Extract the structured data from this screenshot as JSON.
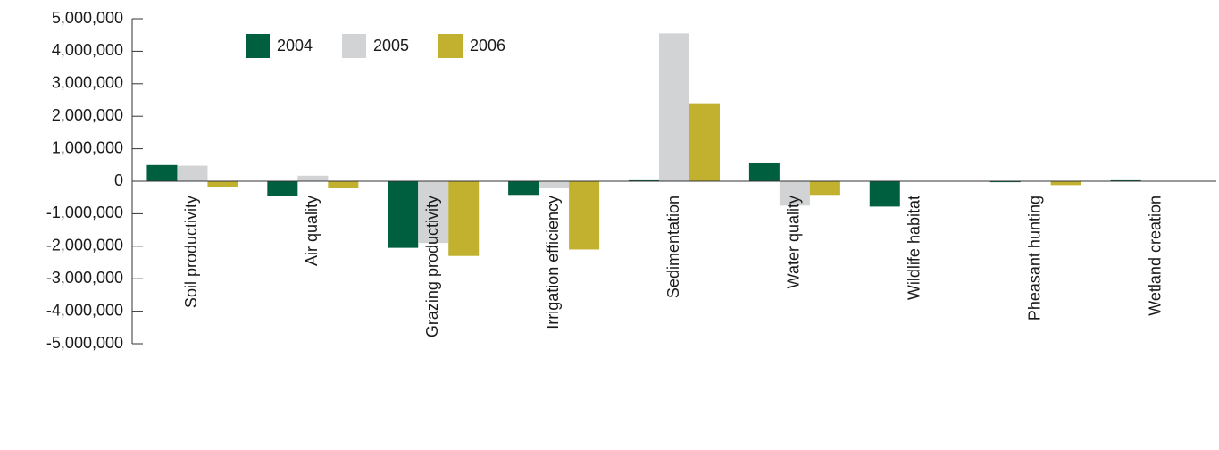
{
  "chart_data": {
    "type": "bar",
    "categories": [
      "Soil productivity",
      "Air quality",
      "Grazing productivity",
      "Irrigation efficiency",
      "Sedimentation",
      "Water quality",
      "Wildlife habitat",
      "Pheasant hunting",
      "Wetland creation"
    ],
    "series": [
      {
        "name": "2004",
        "color": "#005f3f",
        "values": [
          500000,
          -450000,
          -2050000,
          -420000,
          30000,
          550000,
          -780000,
          -30000,
          30000
        ]
      },
      {
        "name": "2005",
        "color": "#d1d3d4",
        "values": [
          480000,
          170000,
          -1900000,
          -220000,
          4550000,
          -750000,
          0,
          0,
          0
        ]
      },
      {
        "name": "2006",
        "color": "#c1b12f",
        "values": [
          -190000,
          -220000,
          -2300000,
          -2100000,
          2400000,
          -420000,
          0,
          -120000,
          0
        ]
      }
    ],
    "ylim": [
      -5000000,
      5000000
    ],
    "yticks": [
      {
        "value": -5000000,
        "label": "-5,000,000"
      },
      {
        "value": -4000000,
        "label": "-4,000,000"
      },
      {
        "value": -3000000,
        "label": "-3,000,000"
      },
      {
        "value": -2000000,
        "label": "-2,000,000"
      },
      {
        "value": -1000000,
        "label": "-1,000,000"
      },
      0,
      {
        "value": 1000000,
        "label": "1,000,000"
      },
      {
        "value": 2000000,
        "label": "2,000,000"
      },
      {
        "value": 3000000,
        "label": "3,000,000"
      },
      {
        "value": 4000000,
        "label": "4,000,000"
      },
      {
        "value": 5000000,
        "label": "5,000,000"
      }
    ],
    "legend": "upper left"
  }
}
